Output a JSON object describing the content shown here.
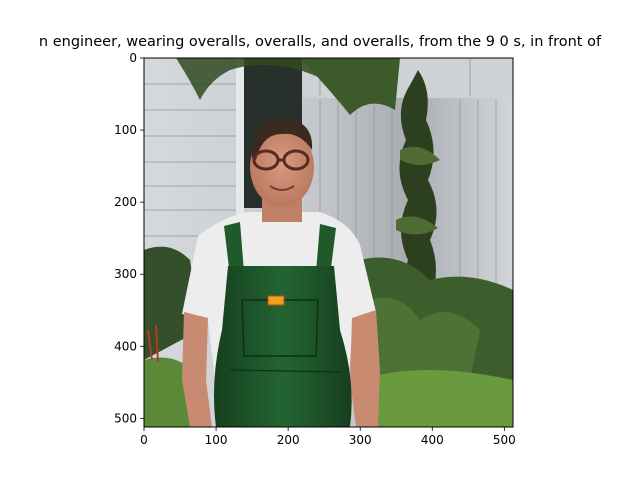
{
  "figure": {
    "title": "n engineer,  wearing overalls, overalls, and overalls, from the 9 0 s, in front of"
  },
  "axes": {
    "x_ticks": [
      "0",
      "100",
      "200",
      "300",
      "400",
      "500"
    ],
    "y_ticks": [
      "0",
      "100",
      "200",
      "300",
      "400",
      "500"
    ],
    "x_values": [
      0,
      100,
      200,
      300,
      400,
      500
    ],
    "y_values": [
      0,
      100,
      200,
      300,
      400,
      500
    ],
    "image_extent": [
      0,
      512
    ]
  },
  "image": {
    "subject": "smiling man with glasses wearing white t-shirt and green overalls with orange badge",
    "background": "white wooden house wall, corrugated metal fence, green shrubs and climbing plants",
    "colors": {
      "wall": "#c9ccd0",
      "fence": "#b9bdc2",
      "shirt": "#eeeeee",
      "overalls": "#1f5a2a",
      "skin": "#c98b73",
      "hair": "#3b2a1f",
      "foliage": "#3a5a2a",
      "badge": "#f0a020"
    }
  }
}
